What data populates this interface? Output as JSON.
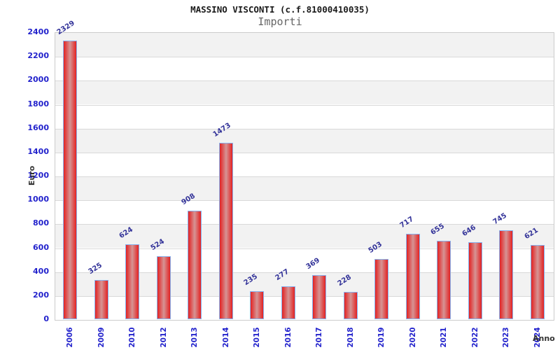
{
  "chart_data": {
    "type": "bar",
    "title": "MASSINO VISCONTI (c.f.81000410035)",
    "subtitle": "Importi",
    "xlabel": "Anno",
    "ylabel": "Euro",
    "categories": [
      "2006",
      "2009",
      "2010",
      "2012",
      "2013",
      "2014",
      "2015",
      "2016",
      "2017",
      "2018",
      "2019",
      "2020",
      "2021",
      "2022",
      "2023",
      "2024"
    ],
    "values": [
      2329,
      325,
      624,
      524,
      908,
      1473,
      235,
      277,
      369,
      228,
      503,
      717,
      655,
      646,
      745,
      621
    ],
    "ylim": [
      0,
      2400
    ],
    "ytick_step": 200,
    "grid": true,
    "legend": false,
    "colors": {
      "bar_edge": "#e32222",
      "bar_center": "#d69494",
      "bar_border": "#86b3ef",
      "axis_tick_label": "#2222cc",
      "value_label": "#333399",
      "axis_title": "#333333",
      "band_dark": "#f2f2f2",
      "band_light": "#ffffff",
      "gridline": "#d9d9d9",
      "plot_border": "#cccccc",
      "title": "#1a1a1a",
      "subtitle": "#666666"
    }
  }
}
